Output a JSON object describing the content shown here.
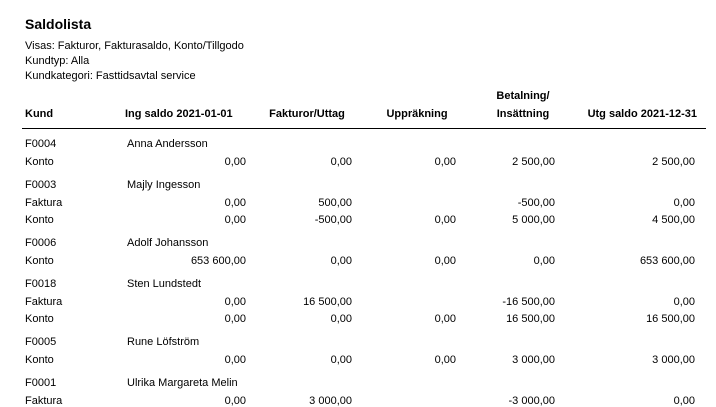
{
  "report": {
    "title": "Saldolista",
    "filters": [
      "Visas: Fakturor, Fakturasaldo, Konto/Tillgodo",
      "Kundtyp: Alla",
      "Kundkategori: Fasttidsavtal service"
    ],
    "columns": {
      "kund": "Kund",
      "ing_saldo": "Ing saldo 2021-01-01",
      "fakturor": "Fakturor/Uttag",
      "upprakning": "Uppräkning",
      "betalning_line1": "Betalning/",
      "betalning_line2": "Insättning",
      "utg_saldo": "Utg saldo 2021-12-31"
    },
    "customers": [
      {
        "id": "F0004",
        "name": "Anna Andersson",
        "rows": [
          {
            "type": "Konto",
            "ing": "0,00",
            "fakt": "0,00",
            "upp": "0,00",
            "bet": "2 500,00",
            "utg": "2 500,00"
          }
        ]
      },
      {
        "id": "F0003",
        "name": "Majly Ingesson",
        "rows": [
          {
            "type": "Faktura",
            "ing": "0,00",
            "fakt": "500,00",
            "upp": "",
            "bet": "-500,00",
            "utg": "0,00"
          },
          {
            "type": "Konto",
            "ing": "0,00",
            "fakt": "-500,00",
            "upp": "0,00",
            "bet": "5 000,00",
            "utg": "4 500,00"
          }
        ]
      },
      {
        "id": "F0006",
        "name": "Adolf Johansson",
        "rows": [
          {
            "type": "Konto",
            "ing": "653 600,00",
            "fakt": "0,00",
            "upp": "0,00",
            "bet": "0,00",
            "utg": "653 600,00"
          }
        ]
      },
      {
        "id": "F0018",
        "name": "Sten Lundstedt",
        "rows": [
          {
            "type": "Faktura",
            "ing": "0,00",
            "fakt": "16 500,00",
            "upp": "",
            "bet": "-16 500,00",
            "utg": "0,00"
          },
          {
            "type": "Konto",
            "ing": "0,00",
            "fakt": "0,00",
            "upp": "0,00",
            "bet": "16 500,00",
            "utg": "16 500,00"
          }
        ]
      },
      {
        "id": "F0005",
        "name": "Rune Löfström",
        "rows": [
          {
            "type": "Konto",
            "ing": "0,00",
            "fakt": "0,00",
            "upp": "0,00",
            "bet": "3 000,00",
            "utg": "3 000,00"
          }
        ]
      },
      {
        "id": "F0001",
        "name": "Ulrika Margareta Melin",
        "rows": [
          {
            "type": "Faktura",
            "ing": "0,00",
            "fakt": "3 000,00",
            "upp": "",
            "bet": "-3 000,00",
            "utg": "0,00"
          }
        ]
      }
    ]
  }
}
